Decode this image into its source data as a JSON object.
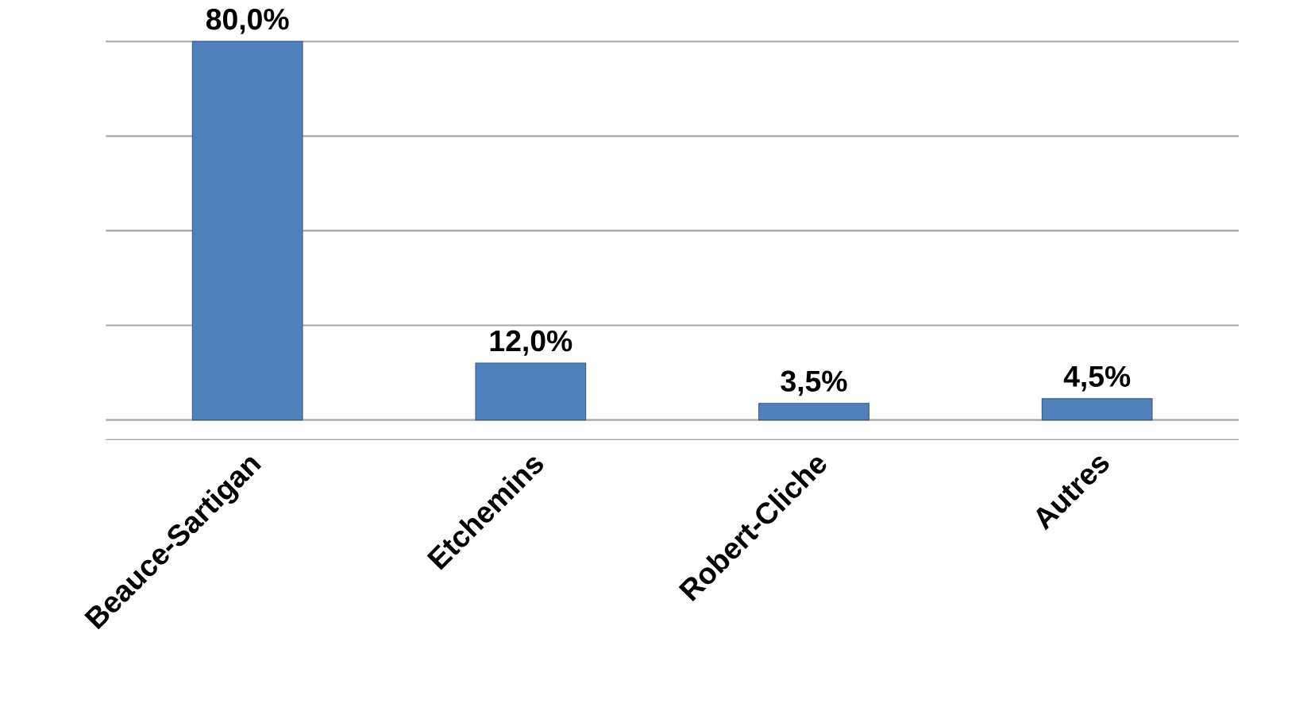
{
  "chart_data": {
    "type": "bar",
    "categories": [
      "Beauce-Sartigan",
      "Etchemins",
      "Robert-Cliche",
      "Autres"
    ],
    "values": [
      80,
      12,
      3.5,
      4.5
    ],
    "value_labels": [
      "80,0%",
      "12,0%",
      "3,5%",
      "4,5%"
    ],
    "color": "#4f81bd",
    "grid": "y",
    "tick_labels": "x"
  }
}
